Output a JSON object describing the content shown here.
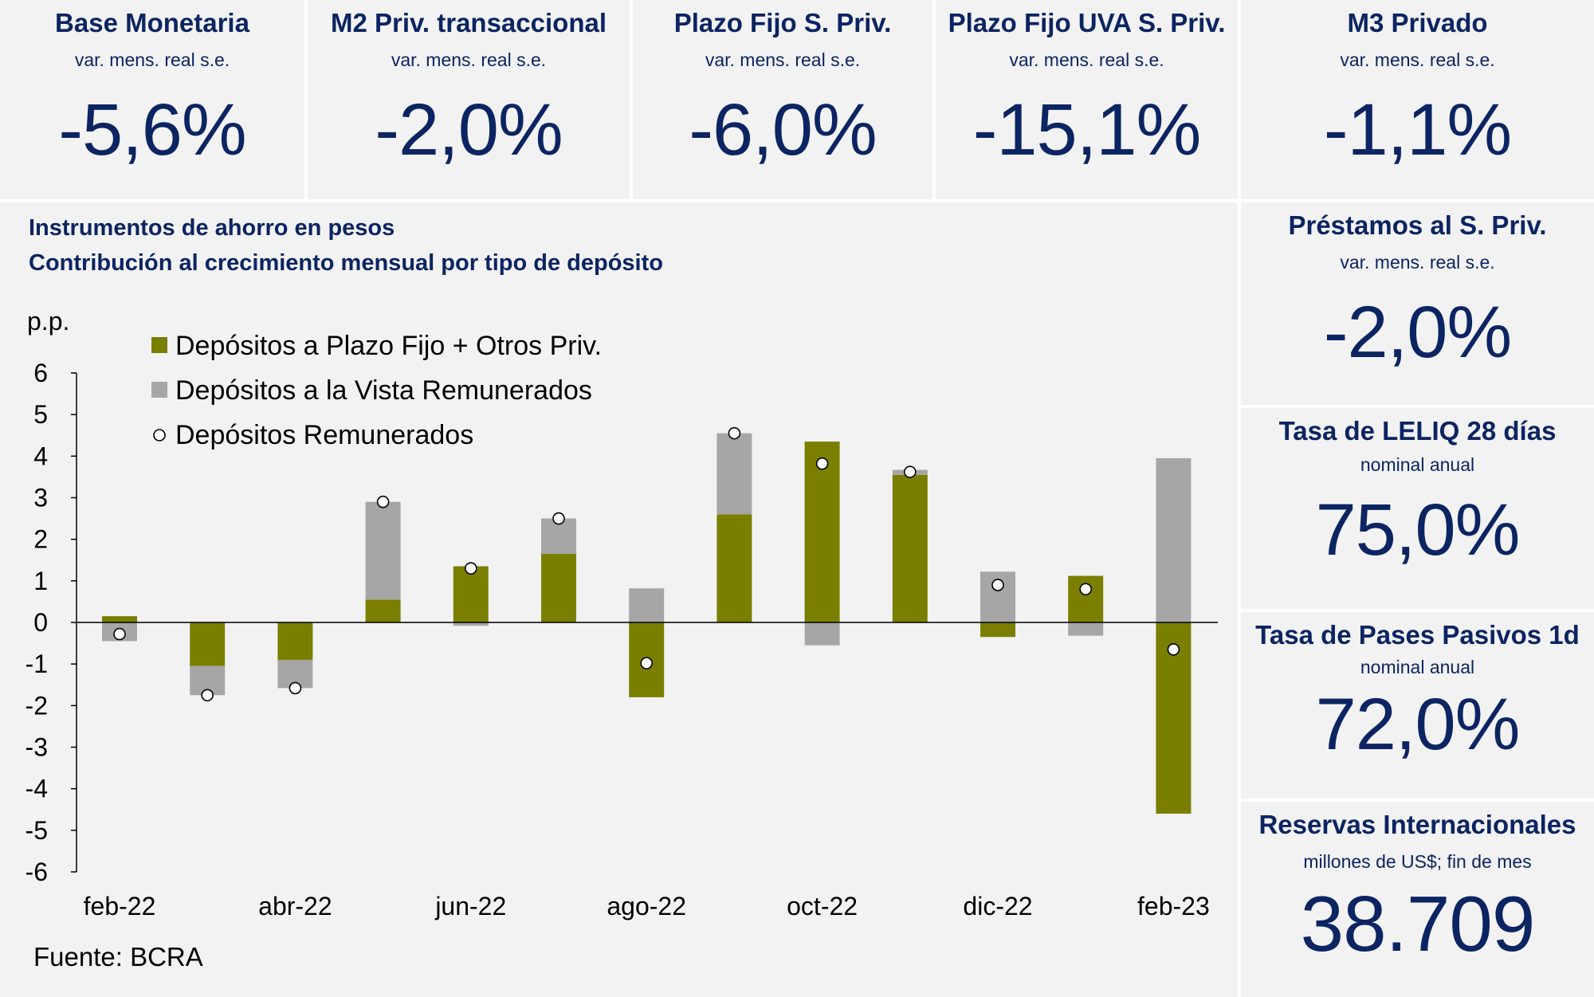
{
  "kpis_top": [
    {
      "title": "Base Monetaria",
      "subtitle": "var. mens. real s.e.",
      "value": "-5,6%"
    },
    {
      "title": "M2 Priv. transaccional",
      "subtitle": "var. mens. real s.e.",
      "value": "-2,0%"
    },
    {
      "title": "Plazo Fijo S. Priv.",
      "subtitle": "var. mens. real s.e.",
      "value": "-6,0%"
    },
    {
      "title": "Plazo Fijo UVA S. Priv.",
      "subtitle": "var. mens. real s.e.",
      "value": "-15,1%"
    },
    {
      "title": "M3 Privado",
      "subtitle": "var. mens. real s.e.",
      "value": "-1,1%"
    }
  ],
  "kpis_side": [
    {
      "title": "Préstamos al S. Priv.",
      "subtitle": "var. mens. real s.e.",
      "value": "-2,0%"
    },
    {
      "title": "Tasa de LELIQ 28 días",
      "subtitle": "nominal anual",
      "value": "75,0%"
    },
    {
      "title": "Tasa de Pases Pasivos 1d",
      "subtitle": "nominal anual",
      "value": "72,0%"
    },
    {
      "title": "Reservas Internacionales",
      "subtitle": "millones de US$; fin de mes",
      "value": "38.709"
    }
  ],
  "chart_data": {
    "type": "bar",
    "stacked": true,
    "title": "Instrumentos de ahorro en pesos",
    "subtitle": "Contribución al crecimiento mensual por tipo de depósito",
    "ylabel": "p.p.",
    "ylim": [
      -6,
      6
    ],
    "yticks": [
      6,
      5,
      4,
      3,
      2,
      1,
      0,
      -1,
      -2,
      -3,
      -4,
      -5,
      -6
    ],
    "categories": [
      "feb-22",
      "mar-22",
      "abr-22",
      "may-22",
      "jun-22",
      "jul-22",
      "ago-22",
      "sep-22",
      "oct-22",
      "nov-22",
      "dic-22",
      "ene-23",
      "feb-23"
    ],
    "xtick_labels": [
      "feb-22",
      "",
      "abr-22",
      "",
      "jun-22",
      "",
      "ago-22",
      "",
      "oct-22",
      "",
      "dic-22",
      "",
      "feb-23"
    ],
    "series": [
      {
        "name": "Depósitos a Plazo Fijo + Otros Priv.",
        "kind": "bar",
        "color": "#7a7f00",
        "values": [
          0.15,
          -1.05,
          -0.9,
          0.55,
          1.35,
          1.65,
          -1.8,
          2.6,
          4.35,
          3.55,
          -0.35,
          1.12,
          -4.6
        ]
      },
      {
        "name": "Depósitos a la Vista Remunerados",
        "kind": "bar",
        "color": "#a6a6a6",
        "values": [
          -0.45,
          -0.7,
          -0.68,
          2.35,
          -0.08,
          0.85,
          0.82,
          1.95,
          -0.55,
          0.12,
          1.22,
          -0.32,
          3.95
        ]
      },
      {
        "name": "Depósitos Remunerados",
        "kind": "point",
        "color": "#ffffff",
        "values": [
          -0.28,
          -1.75,
          -1.58,
          2.9,
          1.3,
          2.5,
          -0.98,
          4.55,
          3.82,
          3.62,
          0.9,
          0.8,
          -0.65
        ]
      }
    ]
  },
  "source": "Fuente: BCRA"
}
